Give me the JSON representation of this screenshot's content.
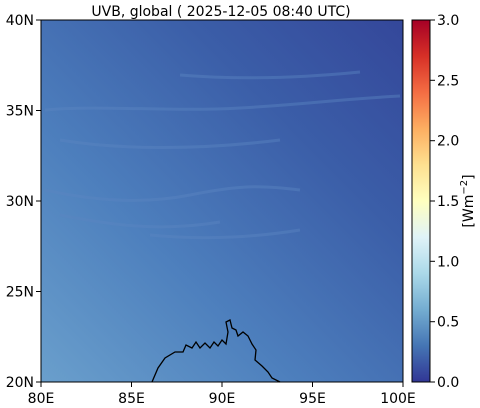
{
  "title": "UVB, global ( 2025-12-05 08:40 UTC)",
  "map": {
    "x_ticks": [
      "80E",
      "85E",
      "90E",
      "95E",
      "100E"
    ],
    "y_ticks": [
      "20N",
      "25N",
      "30N",
      "35N",
      "40N"
    ],
    "lon_range": [
      80,
      100
    ],
    "lat_range": [
      20,
      40
    ]
  },
  "colorbar": {
    "label": "[Wm",
    "label_exponent": "−2",
    "label_close": "]",
    "ticks": [
      "0.0",
      "0.5",
      "1.0",
      "1.5",
      "2.0",
      "2.5",
      "3.0"
    ],
    "range": [
      0.0,
      3.0
    ],
    "colors": [
      "#313695",
      "#4575b4",
      "#74add1",
      "#abd9e9",
      "#e0f3f8",
      "#ffffbf",
      "#fee090",
      "#fdae61",
      "#f46d43",
      "#d73027",
      "#a50026"
    ]
  }
}
